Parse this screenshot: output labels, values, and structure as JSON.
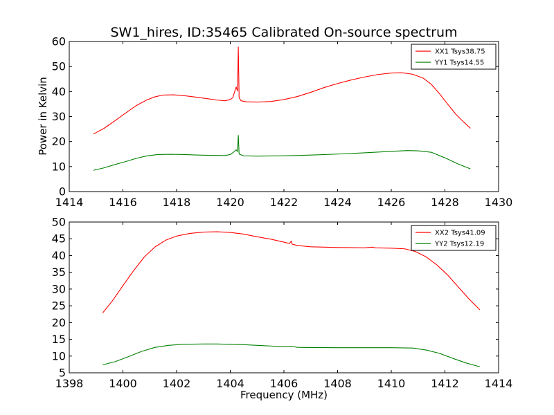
{
  "figure": {
    "title": "SW1_hires, ID:35465 Calibrated On-source spectrum",
    "xlabel": "Frequency (MHz)",
    "ylabel": "Power in Kelvin"
  },
  "colors": {
    "xx": "#ff0000",
    "yy": "#008000",
    "axes": "#000000",
    "background": "#ffffff"
  },
  "chart_data": [
    {
      "type": "line",
      "xlim": [
        1414,
        1430
      ],
      "ylim": [
        0,
        60
      ],
      "xticks": [
        1414,
        1416,
        1418,
        1420,
        1422,
        1424,
        1426,
        1428,
        1430
      ],
      "yticks": [
        0,
        10,
        20,
        30,
        40,
        50,
        60
      ],
      "legend_position": "top-right",
      "series": [
        {
          "name": "XX1 Tsys38.75",
          "color": "#ff0000",
          "points": [
            [
              1414.9,
              23.0
            ],
            [
              1415.3,
              25.3
            ],
            [
              1415.7,
              28.3
            ],
            [
              1416.1,
              31.4
            ],
            [
              1416.5,
              34.4
            ],
            [
              1416.9,
              36.7
            ],
            [
              1417.2,
              37.9
            ],
            [
              1417.5,
              38.6
            ],
            [
              1417.9,
              38.7
            ],
            [
              1418.3,
              38.3
            ],
            [
              1418.7,
              37.8
            ],
            [
              1419.1,
              37.2
            ],
            [
              1419.5,
              36.6
            ],
            [
              1419.8,
              36.3
            ],
            [
              1420.0,
              36.8
            ],
            [
              1420.1,
              37.6
            ],
            [
              1420.15,
              39.5
            ],
            [
              1420.22,
              41.8
            ],
            [
              1420.27,
              40.2
            ],
            [
              1420.3,
              57.8
            ],
            [
              1420.33,
              37.5
            ],
            [
              1420.4,
              36.3
            ],
            [
              1420.6,
              35.9
            ],
            [
              1421.0,
              35.8
            ],
            [
              1421.5,
              36.0
            ],
            [
              1422.0,
              36.8
            ],
            [
              1422.5,
              38.0
            ],
            [
              1423.0,
              39.7
            ],
            [
              1423.5,
              41.6
            ],
            [
              1424.0,
              43.2
            ],
            [
              1424.5,
              44.6
            ],
            [
              1425.0,
              45.8
            ],
            [
              1425.5,
              46.8
            ],
            [
              1426.0,
              47.4
            ],
            [
              1426.4,
              47.5
            ],
            [
              1426.8,
              46.9
            ],
            [
              1427.2,
              45.3
            ],
            [
              1427.5,
              42.8
            ],
            [
              1427.8,
              39.1
            ],
            [
              1428.1,
              35.0
            ],
            [
              1428.4,
              31.0
            ],
            [
              1428.7,
              27.8
            ],
            [
              1428.95,
              25.3
            ]
          ]
        },
        {
          "name": "YY1 Tsys14.55",
          "color": "#008000",
          "points": [
            [
              1414.9,
              8.5
            ],
            [
              1415.3,
              9.5
            ],
            [
              1415.7,
              10.8
            ],
            [
              1416.1,
              12.0
            ],
            [
              1416.5,
              13.3
            ],
            [
              1416.9,
              14.3
            ],
            [
              1417.3,
              14.8
            ],
            [
              1417.8,
              14.9
            ],
            [
              1418.3,
              14.8
            ],
            [
              1418.8,
              14.6
            ],
            [
              1419.3,
              14.5
            ],
            [
              1419.8,
              14.4
            ],
            [
              1420.0,
              14.8
            ],
            [
              1420.15,
              16.0
            ],
            [
              1420.22,
              16.7
            ],
            [
              1420.27,
              16.0
            ],
            [
              1420.3,
              22.5
            ],
            [
              1420.33,
              15.0
            ],
            [
              1420.5,
              14.3
            ],
            [
              1421.0,
              14.2
            ],
            [
              1422.0,
              14.3
            ],
            [
              1423.0,
              14.6
            ],
            [
              1424.0,
              15.0
            ],
            [
              1425.0,
              15.5
            ],
            [
              1426.0,
              16.1
            ],
            [
              1426.6,
              16.4
            ],
            [
              1427.0,
              16.3
            ],
            [
              1427.5,
              15.7
            ],
            [
              1428.0,
              13.5
            ],
            [
              1428.5,
              11.0
            ],
            [
              1428.95,
              9.1
            ]
          ]
        }
      ]
    },
    {
      "type": "line",
      "xlim": [
        1398,
        1414
      ],
      "ylim": [
        5,
        50
      ],
      "xticks": [
        1398,
        1400,
        1402,
        1404,
        1406,
        1408,
        1410,
        1412,
        1414
      ],
      "yticks": [
        5,
        10,
        15,
        20,
        25,
        30,
        35,
        40,
        45,
        50
      ],
      "legend_position": "top-right",
      "series": [
        {
          "name": "XX2 Tsys41.09",
          "color": "#ff0000",
          "points": [
            [
              1399.25,
              22.9
            ],
            [
              1399.6,
              26.4
            ],
            [
              1400.0,
              31.0
            ],
            [
              1400.4,
              35.5
            ],
            [
              1400.8,
              39.6
            ],
            [
              1401.2,
              42.6
            ],
            [
              1401.6,
              44.6
            ],
            [
              1402.0,
              45.8
            ],
            [
              1402.5,
              46.6
            ],
            [
              1403.0,
              47.0
            ],
            [
              1403.5,
              47.1
            ],
            [
              1404.0,
              46.9
            ],
            [
              1404.5,
              46.4
            ],
            [
              1405.0,
              45.6
            ],
            [
              1405.5,
              44.9
            ],
            [
              1406.0,
              44.0
            ],
            [
              1406.2,
              43.6
            ],
            [
              1406.28,
              44.3
            ],
            [
              1406.3,
              43.4
            ],
            [
              1406.5,
              43.0
            ],
            [
              1407.0,
              42.6
            ],
            [
              1408.0,
              42.4
            ],
            [
              1409.0,
              42.3
            ],
            [
              1409.3,
              42.5
            ],
            [
              1409.4,
              42.3
            ],
            [
              1410.0,
              42.2
            ],
            [
              1410.5,
              42.0
            ],
            [
              1410.9,
              41.2
            ],
            [
              1411.3,
              39.6
            ],
            [
              1411.7,
              37.2
            ],
            [
              1412.1,
              34.2
            ],
            [
              1412.5,
              30.6
            ],
            [
              1412.9,
              27.0
            ],
            [
              1413.3,
              23.8
            ]
          ]
        },
        {
          "name": "YY2 Tsys12.19",
          "color": "#008000",
          "points": [
            [
              1399.25,
              7.4
            ],
            [
              1399.7,
              8.3
            ],
            [
              1400.2,
              9.8
            ],
            [
              1400.7,
              11.4
            ],
            [
              1401.2,
              12.6
            ],
            [
              1401.7,
              13.2
            ],
            [
              1402.2,
              13.5
            ],
            [
              1403.0,
              13.6
            ],
            [
              1403.5,
              13.6
            ],
            [
              1404.0,
              13.5
            ],
            [
              1404.5,
              13.4
            ],
            [
              1405.0,
              13.2
            ],
            [
              1405.5,
              13.0
            ],
            [
              1406.0,
              12.8
            ],
            [
              1406.3,
              12.9
            ],
            [
              1406.5,
              12.6
            ],
            [
              1407.0,
              12.55
            ],
            [
              1408.0,
              12.5
            ],
            [
              1409.0,
              12.5
            ],
            [
              1410.0,
              12.5
            ],
            [
              1410.8,
              12.4
            ],
            [
              1411.3,
              11.8
            ],
            [
              1411.8,
              10.8
            ],
            [
              1412.3,
              9.3
            ],
            [
              1412.8,
              7.9
            ],
            [
              1413.3,
              6.8
            ]
          ]
        }
      ]
    }
  ]
}
